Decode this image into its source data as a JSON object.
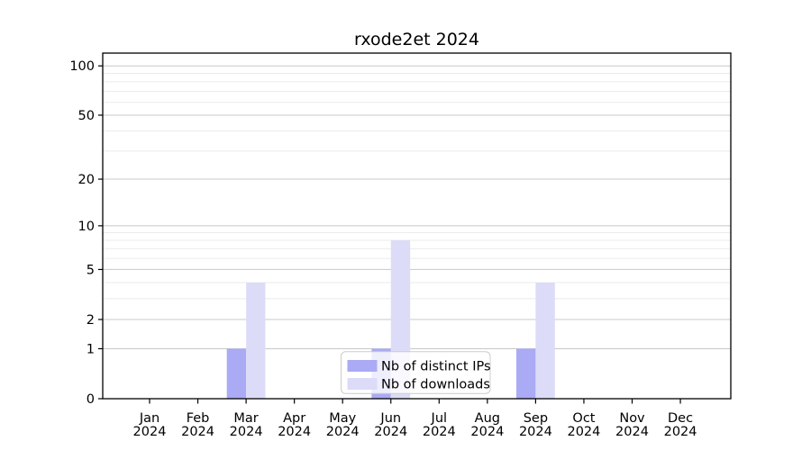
{
  "page": {
    "background": "#ffffff"
  },
  "chart_data": {
    "type": "bar",
    "title": "rxode2et 2024",
    "categories": [
      "Jan 2024",
      "Feb 2024",
      "Mar 2024",
      "Apr 2024",
      "May 2024",
      "Jun 2024",
      "Jul 2024",
      "Aug 2024",
      "Sep 2024",
      "Oct 2024",
      "Nov 2024",
      "Dec 2024"
    ],
    "x_tick_months": [
      "Jan",
      "Feb",
      "Mar",
      "Apr",
      "May",
      "Jun",
      "Jul",
      "Aug",
      "Sep",
      "Oct",
      "Nov",
      "Dec"
    ],
    "x_tick_year": "2024",
    "series": [
      {
        "name": "Nb of distinct IPs",
        "color": "#aaaaf5",
        "values": [
          0,
          0,
          1,
          0,
          0,
          1,
          0,
          0,
          1,
          0,
          0,
          0
        ]
      },
      {
        "name": "Nb of downloads",
        "color": "#dcdcf8",
        "values": [
          0,
          0,
          4,
          0,
          0,
          8,
          0,
          0,
          4,
          0,
          0,
          0
        ]
      }
    ],
    "y_axis": {
      "scale": "log1p",
      "major_ticks": [
        0,
        1,
        2,
        5,
        10,
        20,
        50,
        100
      ],
      "minor_gridlines": [
        3,
        4,
        6,
        7,
        8,
        9,
        30,
        40,
        60,
        70,
        80,
        90
      ],
      "ylim": [
        0,
        120
      ]
    },
    "grid": {
      "major_color": "#c8c8c8",
      "minor_color": "#ebebeb",
      "on": true
    },
    "axis_color": "#000000",
    "text_color": "#000000",
    "legend": {
      "position": "inside-bottom-center",
      "background": "#ffffff",
      "border_color": "#cccccc",
      "entries": [
        "Nb of distinct IPs",
        "Nb of downloads"
      ]
    }
  }
}
